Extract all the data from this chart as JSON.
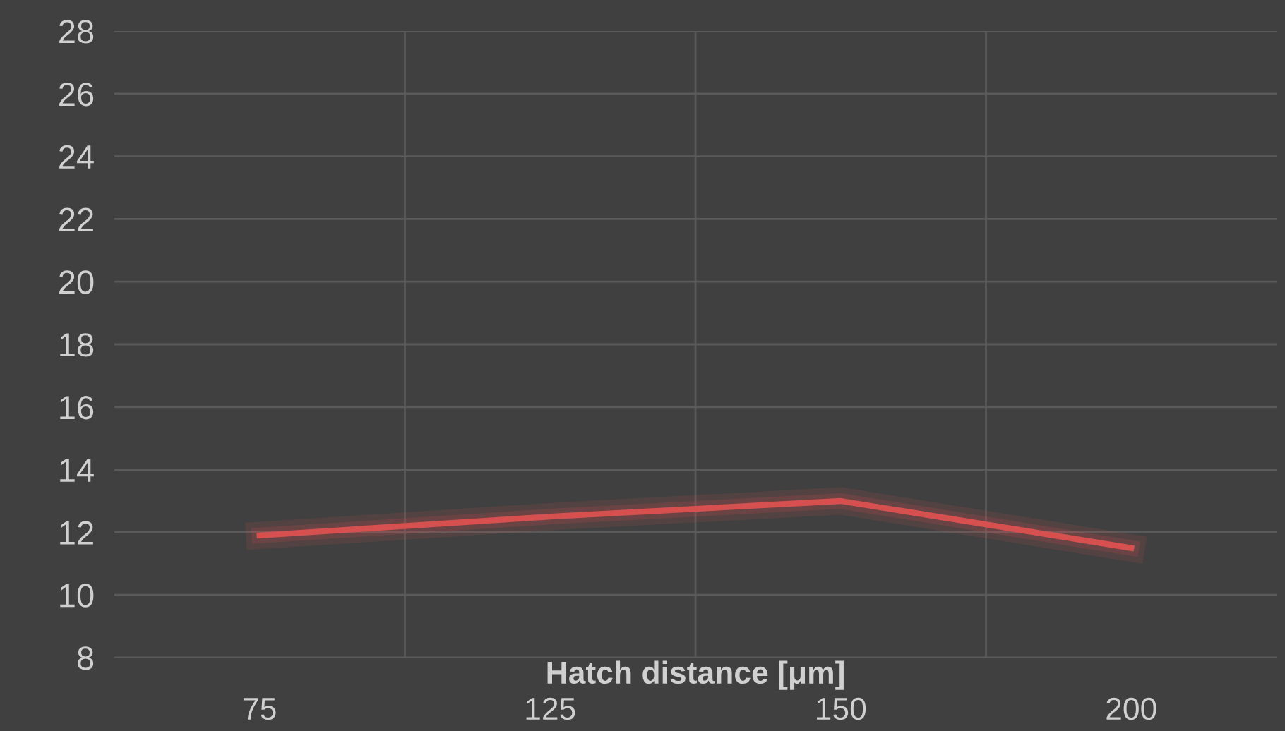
{
  "chart_data": {
    "type": "line",
    "xlabel": "Hatch distance [μm]",
    "categories": [
      "75",
      "125",
      "150",
      "200"
    ],
    "series": [
      {
        "color": "#d65050",
        "values": [
          11.9,
          12.5,
          13.0,
          11.5
        ]
      }
    ],
    "ylim": [
      8,
      28
    ],
    "yticks": [
      8,
      10,
      12,
      14,
      16,
      18,
      20,
      22,
      24,
      26,
      28
    ],
    "grid": true,
    "marker": "none",
    "line_style": "solid"
  }
}
